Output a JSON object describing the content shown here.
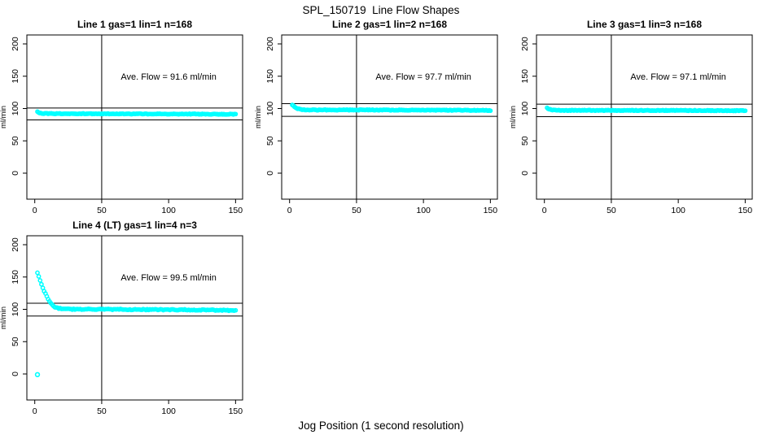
{
  "figure": {
    "title": "SPL_150719  Line Flow Shapes",
    "xlabel": "Jog Position (1 second resolution)",
    "background": "#FFFFFF",
    "axis_color": "#000000",
    "marker_color": "#00FFFF"
  },
  "chart_data": [
    {
      "type": "scatter",
      "title": "Line 1 gas=1 lin=1 n=168",
      "n": 168,
      "annotation": "Ave. Flow =  91.6  ml/min",
      "ave_flow_ml_min": 91.6,
      "ylabel": "ml/min",
      "xticks": [
        0,
        50,
        100,
        150
      ],
      "yticks": [
        0,
        50,
        100,
        150,
        200
      ],
      "xlim": [
        -6,
        156
      ],
      "ylim": [
        -40,
        214
      ],
      "vline_x": 50,
      "hlines": [
        100.8,
        82.4
      ],
      "annotation_pos": [
        100,
        150
      ],
      "x_step": 0.8,
      "jitter": 0.5,
      "marker": "open-circle",
      "points": [
        [
          2,
          95.5
        ],
        [
          3,
          93.8
        ],
        [
          4,
          93.0
        ],
        [
          6,
          92.4
        ],
        [
          10,
          92.2
        ],
        [
          30,
          92.0
        ],
        [
          60,
          91.8
        ],
        [
          100,
          91.6
        ],
        [
          150,
          91.2
        ]
      ],
      "extra_points": []
    },
    {
      "type": "scatter",
      "title": "Line 2 gas=1 lin=2 n=168",
      "n": 168,
      "annotation": "Ave. Flow =  97.7  ml/min",
      "ave_flow_ml_min": 97.7,
      "ylabel": "ml/min",
      "xticks": [
        0,
        50,
        100,
        150
      ],
      "yticks": [
        0,
        50,
        100,
        150,
        200
      ],
      "xlim": [
        -6,
        156
      ],
      "ylim": [
        -40,
        214
      ],
      "vline_x": 50,
      "hlines": [
        107.5,
        87.9
      ],
      "annotation_pos": [
        100,
        150
      ],
      "x_step": 0.8,
      "jitter": 0.5,
      "marker": "open-circle",
      "points": [
        [
          2,
          105.5
        ],
        [
          3,
          104.0
        ],
        [
          4,
          102.5
        ],
        [
          5,
          101.0
        ],
        [
          6,
          99.8
        ],
        [
          8,
          98.6
        ],
        [
          10,
          98.2
        ],
        [
          15,
          97.9
        ],
        [
          40,
          97.8
        ],
        [
          80,
          97.6
        ],
        [
          120,
          97.4
        ],
        [
          150,
          97.1
        ]
      ],
      "extra_points": []
    },
    {
      "type": "scatter",
      "title": "Line 3 gas=1 lin=3 n=168",
      "n": 168,
      "annotation": "Ave. Flow =  97.1  ml/min",
      "ave_flow_ml_min": 97.1,
      "ylabel": "ml/min",
      "xticks": [
        0,
        50,
        100,
        150
      ],
      "yticks": [
        0,
        50,
        100,
        150,
        200
      ],
      "xlim": [
        -6,
        156
      ],
      "ylim": [
        -40,
        214
      ],
      "vline_x": 50,
      "hlines": [
        106.8,
        87.4
      ],
      "annotation_pos": [
        100,
        150
      ],
      "x_step": 0.8,
      "jitter": 0.5,
      "marker": "open-circle",
      "points": [
        [
          2,
          100.8
        ],
        [
          3,
          99.8
        ],
        [
          4,
          98.8
        ],
        [
          5,
          98.2
        ],
        [
          7,
          97.5
        ],
        [
          10,
          97.2
        ],
        [
          40,
          97.1
        ],
        [
          100,
          97.0
        ],
        [
          150,
          96.7
        ]
      ],
      "extra_points": []
    },
    {
      "type": "scatter",
      "title": "Line 4 (LT) gas=1 lin=4 n=3",
      "n": 3,
      "annotation": "Ave. Flow =  99.5  ml/min",
      "ave_flow_ml_min": 99.5,
      "ylabel": "ml/min",
      "xticks": [
        0,
        50,
        100,
        150
      ],
      "yticks": [
        0,
        50,
        100,
        150,
        200
      ],
      "xlim": [
        -6,
        156
      ],
      "ylim": [
        -40,
        214
      ],
      "vline_x": 50,
      "hlines": [
        109.5,
        89.6
      ],
      "annotation_pos": [
        100,
        150
      ],
      "x_step": 1.0,
      "jitter": 0.8,
      "marker": "open-circle",
      "points": [
        [
          2,
          157
        ],
        [
          3,
          151
        ],
        [
          4,
          145
        ],
        [
          5,
          139
        ],
        [
          6,
          133.5
        ],
        [
          7,
          128.5
        ],
        [
          8,
          124
        ],
        [
          9,
          119.5
        ],
        [
          10,
          115.5
        ],
        [
          11,
          112
        ],
        [
          12,
          109
        ],
        [
          13,
          106.5
        ],
        [
          14,
          104.8
        ],
        [
          15,
          103.5
        ],
        [
          16,
          102.7
        ],
        [
          18,
          101.8
        ],
        [
          20,
          101.2
        ],
        [
          24,
          100.6
        ],
        [
          28,
          100.3
        ],
        [
          35,
          100.1
        ],
        [
          50,
          100.0
        ],
        [
          70,
          99.8
        ],
        [
          90,
          99.6
        ],
        [
          110,
          99.3
        ],
        [
          130,
          98.9
        ],
        [
          150,
          98.3
        ]
      ],
      "extra_points": [
        [
          2,
          -1
        ]
      ]
    }
  ]
}
